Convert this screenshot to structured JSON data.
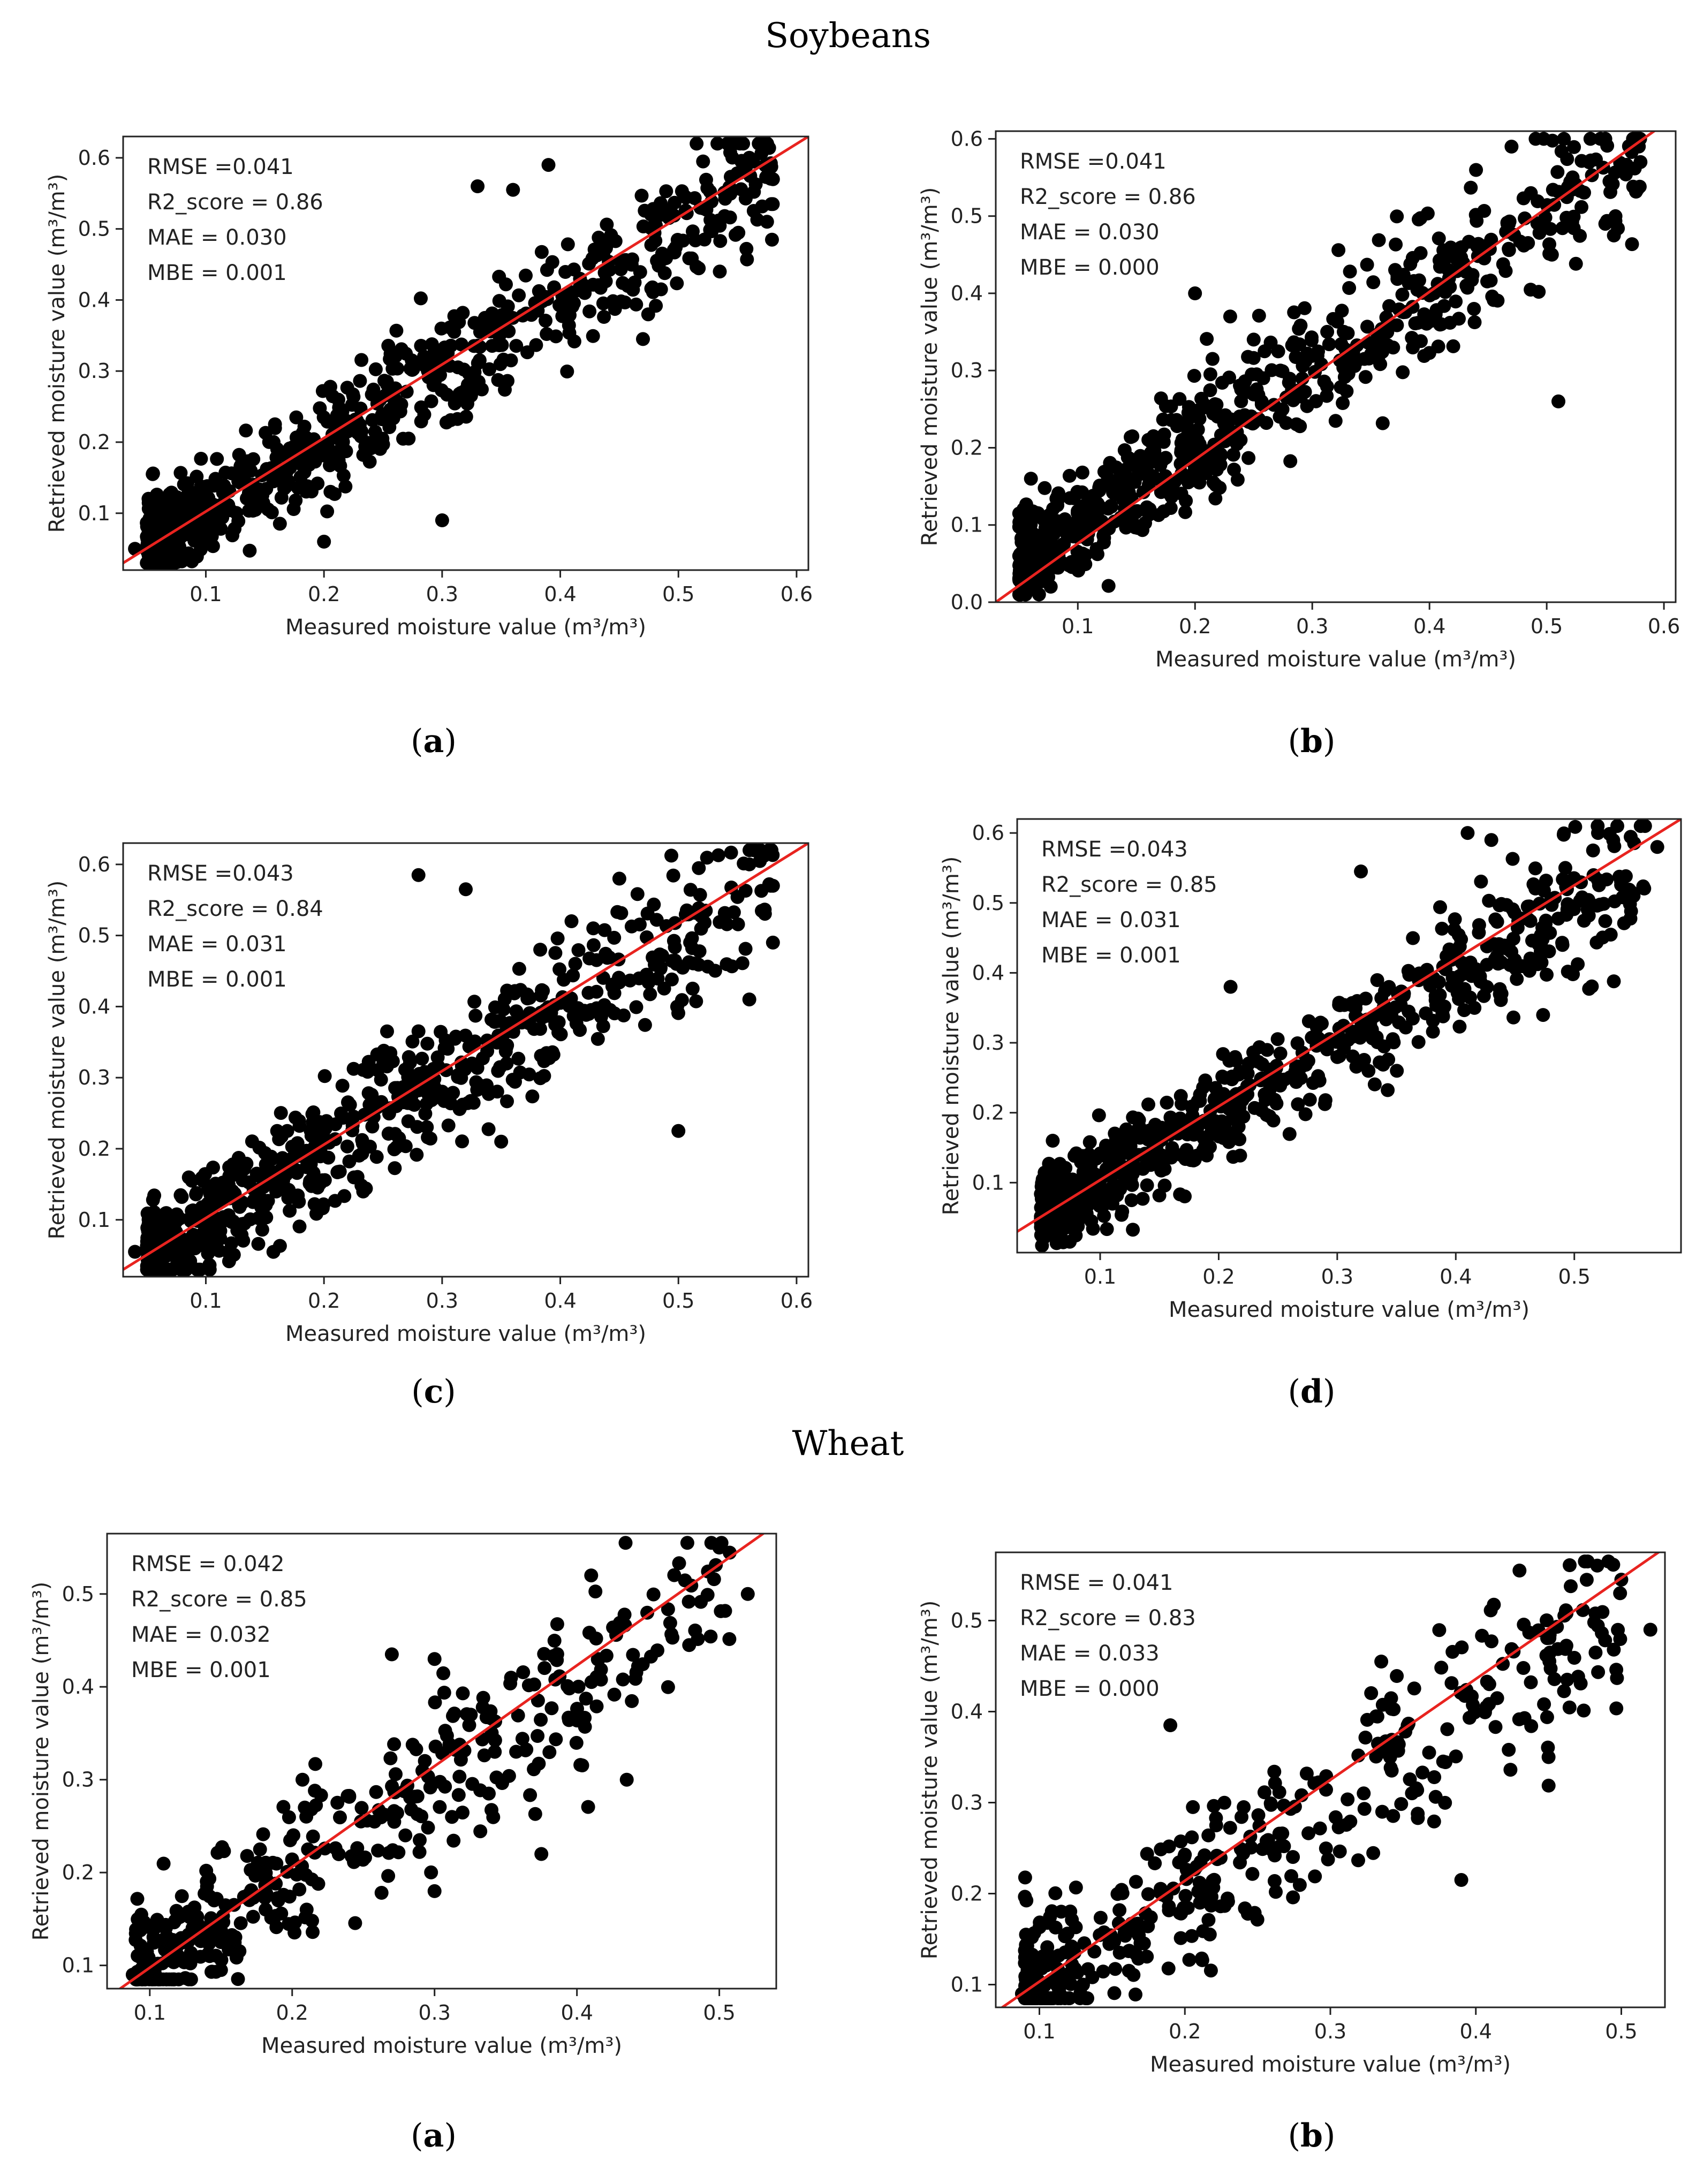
{
  "sections": [
    {
      "title": "Soybeans"
    },
    {
      "title": "Wheat"
    }
  ],
  "chart_data": [
    {
      "type": "scatter",
      "id": "soy-a",
      "label": "a",
      "metrics": [
        "RMSE =0.041",
        "R2_score = 0.86",
        "MAE = 0.030",
        "MBE = 0.001"
      ],
      "xlabel": "Measured moisture value",
      "ylabel": "Retrieved moisture value",
      "unit": "m³/m³",
      "xlim": [
        0.03,
        0.61
      ],
      "ylim": [
        0.02,
        0.63
      ],
      "xticks": [
        "0.1",
        "0.2",
        "0.3",
        "0.4",
        "0.5",
        "0.6"
      ],
      "xtick_values": [
        0.1,
        0.2,
        0.3,
        0.4,
        0.5,
        0.6
      ],
      "yticks": [
        "0.1",
        "0.2",
        "0.3",
        "0.4",
        "0.5",
        "0.6"
      ],
      "ytick_values": [
        0.1,
        0.2,
        0.3,
        0.4,
        0.5,
        0.6
      ],
      "n": 700,
      "seed": 11,
      "spread": 0.038,
      "outliers": [
        [
          0.055,
          0.155
        ],
        [
          0.2,
          0.06
        ],
        [
          0.3,
          0.09
        ],
        [
          0.33,
          0.56
        ],
        [
          0.36,
          0.555
        ],
        [
          0.39,
          0.59
        ],
        [
          0.47,
          0.345
        ],
        [
          0.535,
          0.44
        ],
        [
          0.575,
          0.51
        ],
        [
          0.56,
          0.6
        ],
        [
          0.58,
          0.57
        ],
        [
          0.04,
          0.05
        ]
      ],
      "fit_line": [
        [
          0.03,
          0.03
        ],
        [
          0.61,
          0.63
        ]
      ]
    },
    {
      "type": "scatter",
      "id": "soy-b",
      "label": "b",
      "metrics": [
        "RMSE =0.041",
        "R2_score = 0.86",
        "MAE = 0.030",
        "MBE = 0.000"
      ],
      "xlabel": "Measured moisture value",
      "ylabel": "Retrieved moisture value",
      "unit": "m³/m³",
      "xlim": [
        0.03,
        0.61
      ],
      "ylim": [
        0.0,
        0.61
      ],
      "xticks": [
        "0.1",
        "0.2",
        "0.3",
        "0.4",
        "0.5",
        "0.6"
      ],
      "xtick_values": [
        0.1,
        0.2,
        0.3,
        0.4,
        0.5,
        0.6
      ],
      "yticks": [
        "0.0",
        "0.1",
        "0.2",
        "0.3",
        "0.4",
        "0.5",
        "0.6"
      ],
      "ytick_values": [
        0.0,
        0.1,
        0.2,
        0.3,
        0.4,
        0.5,
        0.6
      ],
      "n": 700,
      "seed": 23,
      "spread": 0.038,
      "outliers": [
        [
          0.06,
          0.16
        ],
        [
          0.2,
          0.4
        ],
        [
          0.23,
          0.37
        ],
        [
          0.51,
          0.26
        ],
        [
          0.47,
          0.59
        ],
        [
          0.55,
          0.6
        ],
        [
          0.58,
          0.57
        ],
        [
          0.55,
          0.49
        ],
        [
          0.41,
          0.36
        ],
        [
          0.05,
          0.03
        ]
      ],
      "fit_line": [
        [
          0.03,
          0.0
        ],
        [
          0.61,
          0.63
        ]
      ]
    },
    {
      "type": "scatter",
      "id": "soy-c",
      "label": "c",
      "metrics": [
        "RMSE =0.043",
        "R2_score = 0.84",
        "MAE = 0.031",
        "MBE = 0.001"
      ],
      "xlabel": "Measured moisture value",
      "ylabel": "Retrieved moisture value",
      "unit": "m³/m³",
      "xlim": [
        0.03,
        0.61
      ],
      "ylim": [
        0.02,
        0.63
      ],
      "xticks": [
        "0.1",
        "0.2",
        "0.3",
        "0.4",
        "0.5",
        "0.6"
      ],
      "xtick_values": [
        0.1,
        0.2,
        0.3,
        0.4,
        0.5,
        0.6
      ],
      "yticks": [
        "0.1",
        "0.2",
        "0.3",
        "0.4",
        "0.5",
        "0.6"
      ],
      "ytick_values": [
        0.1,
        0.2,
        0.3,
        0.4,
        0.5,
        0.6
      ],
      "n": 720,
      "seed": 37,
      "spread": 0.04,
      "outliers": [
        [
          0.28,
          0.585
        ],
        [
          0.32,
          0.565
        ],
        [
          0.5,
          0.225
        ],
        [
          0.35,
          0.21
        ],
        [
          0.56,
          0.41
        ],
        [
          0.58,
          0.49
        ],
        [
          0.56,
          0.6
        ],
        [
          0.58,
          0.57
        ],
        [
          0.45,
          0.58
        ],
        [
          0.04,
          0.055
        ]
      ],
      "fit_line": [
        [
          0.03,
          0.03
        ],
        [
          0.61,
          0.63
        ]
      ]
    },
    {
      "type": "scatter",
      "id": "soy-d",
      "label": "d",
      "metrics": [
        "RMSE =0.043",
        "R2_score = 0.85",
        "MAE = 0.031",
        "MBE = 0.001"
      ],
      "xlabel": "Measured moisture value",
      "ylabel": "Retrieved moisture value",
      "unit": "m³/m³",
      "xlim": [
        0.03,
        0.59
      ],
      "ylim": [
        0.0,
        0.62
      ],
      "xticks": [
        "0.1",
        "0.2",
        "0.3",
        "0.4",
        "0.5"
      ],
      "xtick_values": [
        0.1,
        0.2,
        0.3,
        0.4,
        0.5
      ],
      "yticks": [
        "0.1",
        "0.2",
        "0.3",
        "0.4",
        "0.5",
        "0.6"
      ],
      "ytick_values": [
        0.1,
        0.2,
        0.3,
        0.4,
        0.5,
        0.6
      ],
      "n": 700,
      "seed": 41,
      "spread": 0.036,
      "outliers": [
        [
          0.32,
          0.545
        ],
        [
          0.41,
          0.6
        ],
        [
          0.21,
          0.38
        ],
        [
          0.06,
          0.16
        ],
        [
          0.43,
          0.59
        ],
        [
          0.46,
          0.41
        ],
        [
          0.49,
          0.44
        ],
        [
          0.55,
          0.51
        ],
        [
          0.57,
          0.58
        ],
        [
          0.52,
          0.6
        ],
        [
          0.06,
          0.03
        ]
      ],
      "fit_line": [
        [
          0.03,
          0.03
        ],
        [
          0.59,
          0.62
        ]
      ]
    },
    {
      "type": "scatter",
      "id": "wheat-a",
      "label": "a",
      "metrics": [
        "RMSE = 0.042",
        "R2_score = 0.85",
        "MAE = 0.032",
        "MBE = 0.001"
      ],
      "xlabel": "Measured moisture value",
      "ylabel": "Retrieved moisture value",
      "unit": "m³/m³",
      "xlim": [
        0.07,
        0.54
      ],
      "ylim": [
        0.075,
        0.565
      ],
      "xticks": [
        "0.1",
        "0.2",
        "0.3",
        "0.4",
        "0.5"
      ],
      "xtick_values": [
        0.1,
        0.2,
        0.3,
        0.4,
        0.5
      ],
      "yticks": [
        "0.1",
        "0.2",
        "0.3",
        "0.4",
        "0.5"
      ],
      "ytick_values": [
        0.1,
        0.2,
        0.3,
        0.4,
        0.5
      ],
      "n": 420,
      "seed": 53,
      "spread": 0.04,
      "outliers": [
        [
          0.088,
          0.09
        ],
        [
          0.27,
          0.435
        ],
        [
          0.3,
          0.43
        ],
        [
          0.375,
          0.22
        ],
        [
          0.435,
          0.3
        ],
        [
          0.3,
          0.18
        ],
        [
          0.5,
          0.55
        ],
        [
          0.52,
          0.5
        ],
        [
          0.15,
          0.095
        ],
        [
          0.41,
          0.52
        ]
      ],
      "fit_line": [
        [
          0.07,
          0.065
        ],
        [
          0.54,
          0.575
        ]
      ]
    },
    {
      "type": "scatter",
      "id": "wheat-b",
      "label": "b",
      "metrics": [
        "RMSE = 0.041",
        "R2_score = 0.83",
        "MAE = 0.033",
        "MBE = 0.000"
      ],
      "xlabel": "Measured moisture value",
      "ylabel": "Retrieved moisture value",
      "unit": "m³/m³",
      "xlim": [
        0.07,
        0.53
      ],
      "ylim": [
        0.075,
        0.575
      ],
      "xticks": [
        "0.1",
        "0.2",
        "0.3",
        "0.4",
        "0.5"
      ],
      "xtick_values": [
        0.1,
        0.2,
        0.3,
        0.4,
        0.5
      ],
      "yticks": [
        "0.1",
        "0.2",
        "0.3",
        "0.4",
        "0.5"
      ],
      "ytick_values": [
        0.1,
        0.2,
        0.3,
        0.4,
        0.5
      ],
      "n": 430,
      "seed": 67,
      "spread": 0.042,
      "outliers": [
        [
          0.088,
          0.09
        ],
        [
          0.39,
          0.215
        ],
        [
          0.43,
          0.555
        ],
        [
          0.52,
          0.49
        ],
        [
          0.5,
          0.545
        ],
        [
          0.335,
          0.455
        ],
        [
          0.19,
          0.385
        ],
        [
          0.45,
          0.35
        ],
        [
          0.13,
          0.1
        ]
      ],
      "fit_line": [
        [
          0.07,
          0.07
        ],
        [
          0.53,
          0.58
        ]
      ]
    }
  ]
}
